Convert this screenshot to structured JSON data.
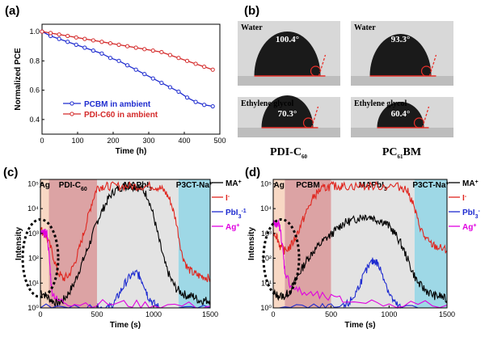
{
  "panels": {
    "a": {
      "label": "(a)",
      "chart_data": {
        "type": "line",
        "xlabel": "Time (h)",
        "ylabel": "Normalized PCE",
        "xlim": [
          0,
          500
        ],
        "ylim": [
          0.3,
          1.05
        ],
        "xticks": [
          0,
          100,
          200,
          300,
          400,
          500
        ],
        "yticks": [
          0.4,
          0.6,
          0.8,
          1.0
        ],
        "ytick_labels": [
          "0.4",
          "0.6",
          "0.8",
          "1.0"
        ],
        "series": [
          {
            "name": "PCBM in ambient",
            "color": "#1f2ccf",
            "x": [
              0,
              24,
              48,
              72,
              96,
              120,
              144,
              168,
              192,
              216,
              240,
              264,
              288,
              312,
              336,
              360,
              384,
              408,
              432,
              456,
              480
            ],
            "y": [
              1.0,
              0.97,
              0.95,
              0.93,
              0.91,
              0.89,
              0.87,
              0.85,
              0.82,
              0.8,
              0.77,
              0.74,
              0.71,
              0.68,
              0.65,
              0.62,
              0.59,
              0.55,
              0.52,
              0.5,
              0.49
            ]
          },
          {
            "name": "PDI-C60 in ambient",
            "color": "#d42a2a",
            "x": [
              0,
              24,
              48,
              72,
              96,
              120,
              144,
              168,
              192,
              216,
              240,
              264,
              288,
              312,
              336,
              360,
              384,
              408,
              432,
              456,
              480
            ],
            "y": [
              1.0,
              0.99,
              0.98,
              0.97,
              0.96,
              0.95,
              0.94,
              0.93,
              0.92,
              0.91,
              0.9,
              0.89,
              0.88,
              0.87,
              0.86,
              0.84,
              0.82,
              0.8,
              0.78,
              0.76,
              0.74
            ]
          }
        ]
      }
    },
    "b": {
      "label": "(b)",
      "images": [
        {
          "liquid": "Water",
          "angle": "100.4°",
          "film": "PDI-C60"
        },
        {
          "liquid": "Water",
          "angle": "93.3°",
          "film": "PC61BM"
        },
        {
          "liquid": "Ethylene glycol",
          "angle": "70.3°",
          "film": "PDI-C60"
        },
        {
          "liquid": "Ethylene glycol",
          "angle": "60.4°",
          "film": "PC61BM"
        }
      ],
      "caption_left": "PDI-C",
      "caption_left_sub": "60",
      "caption_right": "PC",
      "caption_right_sub": "61",
      "caption_right_tail": "BM"
    },
    "c": {
      "label": "(c)",
      "chart_data": {
        "type": "line",
        "log_y": true,
        "xlabel": "Time (s)",
        "ylabel": "Intensity",
        "xlim": [
          0,
          1500
        ],
        "ylim": [
          1,
          150000
        ],
        "xticks": [
          0,
          500,
          1000,
          1500
        ],
        "yticks": [
          1,
          10,
          100,
          1000,
          10000,
          100000
        ],
        "ytick_labels": [
          "10⁰",
          "10¹",
          "10²",
          "10³",
          "10⁴",
          "10⁵"
        ],
        "regions": [
          {
            "label": "Ag",
            "x": [
              0,
              75
            ],
            "color": "#f8d8c4"
          },
          {
            "label": "PDI-C",
            "sub": "60",
            "x": [
              75,
              500
            ],
            "color": "#dca3a4"
          },
          {
            "label": "MAPbI",
            "sub": "3",
            "x": [
              500,
              1220
            ],
            "color": "#e3e3e3"
          },
          {
            "label": "P3CT-Na",
            "sup": "+",
            "x": [
              1220,
              1500
            ],
            "color": "#9ed8e6"
          }
        ],
        "series": [
          {
            "name": "MA",
            "sup": "+",
            "color": "#000000",
            "x": [
              0,
              50,
              100,
              150,
              200,
              250,
              300,
              350,
              400,
              450,
              500,
              550,
              600,
              650,
              700,
              750,
              800,
              850,
              900,
              950,
              1000,
              1050,
              1100,
              1150,
              1200,
              1250,
              1300,
              1350,
              1400,
              1450,
              1500
            ],
            "y": [
              5,
              3,
              2,
              1.5,
              2,
              4,
              10,
              40,
              150,
              600,
              3000,
              9000,
              25000,
              50000,
              70000,
              80000,
              80000,
              75000,
              60000,
              30000,
              5000,
              500,
              60,
              15,
              6,
              4,
              3,
              3,
              2,
              2,
              2
            ]
          },
          {
            "name": "I",
            "sup": "-",
            "color": "#e0261f",
            "x": [
              0,
              50,
              100,
              150,
              200,
              250,
              300,
              350,
              400,
              450,
              500,
              550,
              600,
              700,
              800,
              900,
              1000,
              1050,
              1100,
              1150,
              1200,
              1250,
              1300,
              1350,
              1400,
              1450,
              1500
            ],
            "y": [
              1500,
              800,
              200,
              30,
              15,
              20,
              60,
              300,
              2000,
              15000,
              70000,
              80000,
              80000,
              80000,
              80000,
              80000,
              80000,
              70000,
              50000,
              20000,
              3000,
              150,
              40,
              25,
              20,
              18,
              15
            ]
          },
          {
            "name": "PbI",
            "sub": "3",
            "sup": "-1",
            "color": "#1e2bd0",
            "x": [
              0,
              400,
              500,
              550,
              600,
              650,
              700,
              750,
              800,
              850,
              880,
              920,
              950,
              1000,
              1050,
              1500
            ],
            "y": [
              1,
              1,
              1,
              1,
              1,
              1.5,
              4,
              10,
              20,
              25,
              18,
              8,
              3,
              1.5,
              1,
              1
            ]
          },
          {
            "name": "Ag",
            "sup": "+",
            "color": "#e000e0",
            "x": [
              0,
              20,
              40,
              60,
              80,
              100,
              150,
              300,
              700,
              1000,
              1500
            ],
            "y": [
              1000,
              1000,
              1000,
              1000,
              80,
              5,
              2,
              1.5,
              1.5,
              1.3,
              1.2
            ]
          }
        ]
      }
    },
    "d": {
      "label": "(d)",
      "chart_data": {
        "type": "line",
        "log_y": true,
        "xlabel": "Time (s)",
        "ylabel": "Intensity",
        "xlim": [
          0,
          1500
        ],
        "ylim": [
          1,
          150000
        ],
        "xticks": [
          0,
          500,
          1000,
          1500
        ],
        "yticks": [
          1,
          10,
          100,
          1000,
          10000,
          100000
        ],
        "ytick_labels": [
          "10⁰",
          "10¹",
          "10²",
          "10³",
          "10⁴",
          "10⁵"
        ],
        "regions": [
          {
            "label": "Ag",
            "x": [
              0,
              100
            ],
            "color": "#f8d8c4"
          },
          {
            "label": "PCBM",
            "x": [
              100,
              500
            ],
            "color": "#dca3a4"
          },
          {
            "label": "MAPbI",
            "sub": "3",
            "x": [
              500,
              1220
            ],
            "color": "#e3e3e3"
          },
          {
            "label": "P3CT-Na",
            "sup": "+",
            "x": [
              1220,
              1500
            ],
            "color": "#9ed8e6"
          }
        ],
        "series": [
          {
            "name": "MA",
            "sup": "+",
            "color": "#000000",
            "x": [
              0,
              50,
              100,
              150,
              200,
              250,
              300,
              350,
              400,
              450,
              500,
              550,
              600,
              650,
              700,
              750,
              800,
              850,
              900,
              950,
              1000,
              1050,
              1100,
              1150,
              1200,
              1250,
              1300,
              1350,
              1400,
              1450,
              1500
            ],
            "y": [
              4,
              3,
              3,
              5,
              15,
              40,
              100,
              200,
              350,
              600,
              900,
              1500,
              2500,
              3000,
              3500,
              4500,
              5000,
              4500,
              3500,
              3000,
              2000,
              1000,
              400,
              120,
              30,
              10,
              6,
              4,
              3,
              3,
              2
            ]
          },
          {
            "name": "I",
            "sup": "-",
            "color": "#e0261f",
            "x": [
              0,
              30,
              60,
              100,
              150,
              200,
              250,
              300,
              350,
              400,
              450,
              500,
              550,
              600,
              700,
              800,
              900,
              1000,
              1100,
              1150,
              1200,
              1250,
              1300,
              1350,
              1400,
              1450,
              1500
            ],
            "y": [
              1200,
              800,
              300,
              200,
              300,
              800,
              3000,
              10000,
              30000,
              55000,
              70000,
              80000,
              80000,
              80000,
              80000,
              80000,
              80000,
              80000,
              75000,
              60000,
              20000,
              3000,
              800,
              400,
              300,
              250,
              200
            ]
          },
          {
            "name": "PbI",
            "sub": "3",
            "sup": "-",
            "color": "#1e2bd0",
            "x": [
              0,
              400,
              600,
              650,
              700,
              750,
              800,
              850,
              880,
              900,
              950,
              1000,
              1050,
              1100,
              1500
            ],
            "y": [
              1,
              1,
              1,
              1.5,
              3,
              10,
              30,
              70,
              80,
              60,
              20,
              4,
              1.5,
              1,
              1
            ]
          },
          {
            "name": "Ag",
            "sup": "+",
            "color": "#e000e0",
            "x": [
              0,
              20,
              40,
              60,
              80,
              100,
              150,
              250,
              400,
              600,
              1000,
              1500
            ],
            "y": [
              3000,
              2000,
              3000,
              1500,
              300,
              30,
              8,
              4,
              3,
              2,
              1.5,
              1.3
            ]
          }
        ]
      }
    }
  }
}
